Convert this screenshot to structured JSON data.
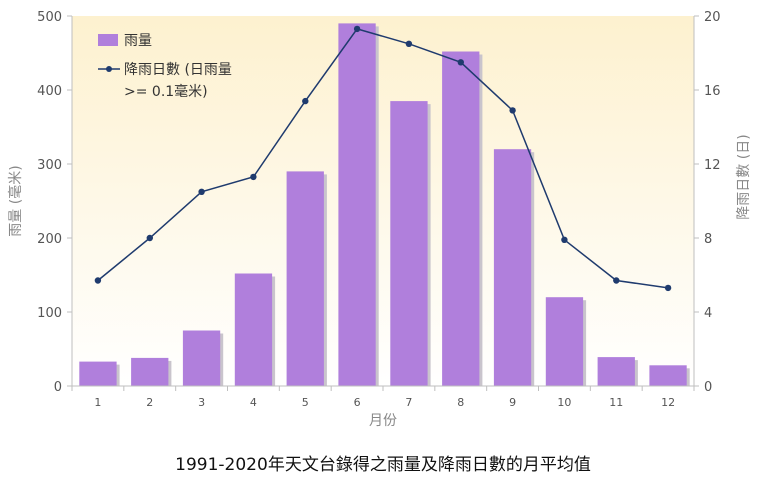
{
  "chart_data": {
    "type": "bar+line",
    "categories": [
      "1",
      "2",
      "3",
      "4",
      "5",
      "6",
      "7",
      "8",
      "9",
      "10",
      "11",
      "12"
    ],
    "series": [
      {
        "name": "雨量",
        "type": "bar",
        "axis": "left",
        "color": "#b07fdc",
        "values": [
          33,
          38,
          75,
          152,
          290,
          490,
          385,
          452,
          320,
          120,
          39,
          28
        ]
      },
      {
        "name_line1": "降雨日數 (日雨量",
        "name_line2": ">= 0.1毫米)",
        "type": "line",
        "axis": "right",
        "color": "#1f3b6e",
        "values": [
          5.7,
          8.0,
          10.5,
          11.3,
          15.4,
          19.3,
          18.5,
          17.5,
          14.9,
          7.9,
          5.7,
          5.3
        ]
      }
    ],
    "xlabel": "月份",
    "ylabel_left": "雨量 (毫米)",
    "ylabel_right": "降雨日數 (日)",
    "ylim_left": [
      0,
      500
    ],
    "yticks_left": [
      "0",
      "100",
      "200",
      "300",
      "400",
      "500"
    ],
    "ylim_right": [
      0,
      20
    ],
    "yticks_right": [
      "0",
      "4",
      "8",
      "12",
      "16",
      "20"
    ],
    "caption": "1991-2020年天文台錄得之雨量及降雨日數的月平均值",
    "legend_position": "top-left",
    "background_gradient": [
      "#fdf1cf",
      "#ffffff"
    ]
  }
}
